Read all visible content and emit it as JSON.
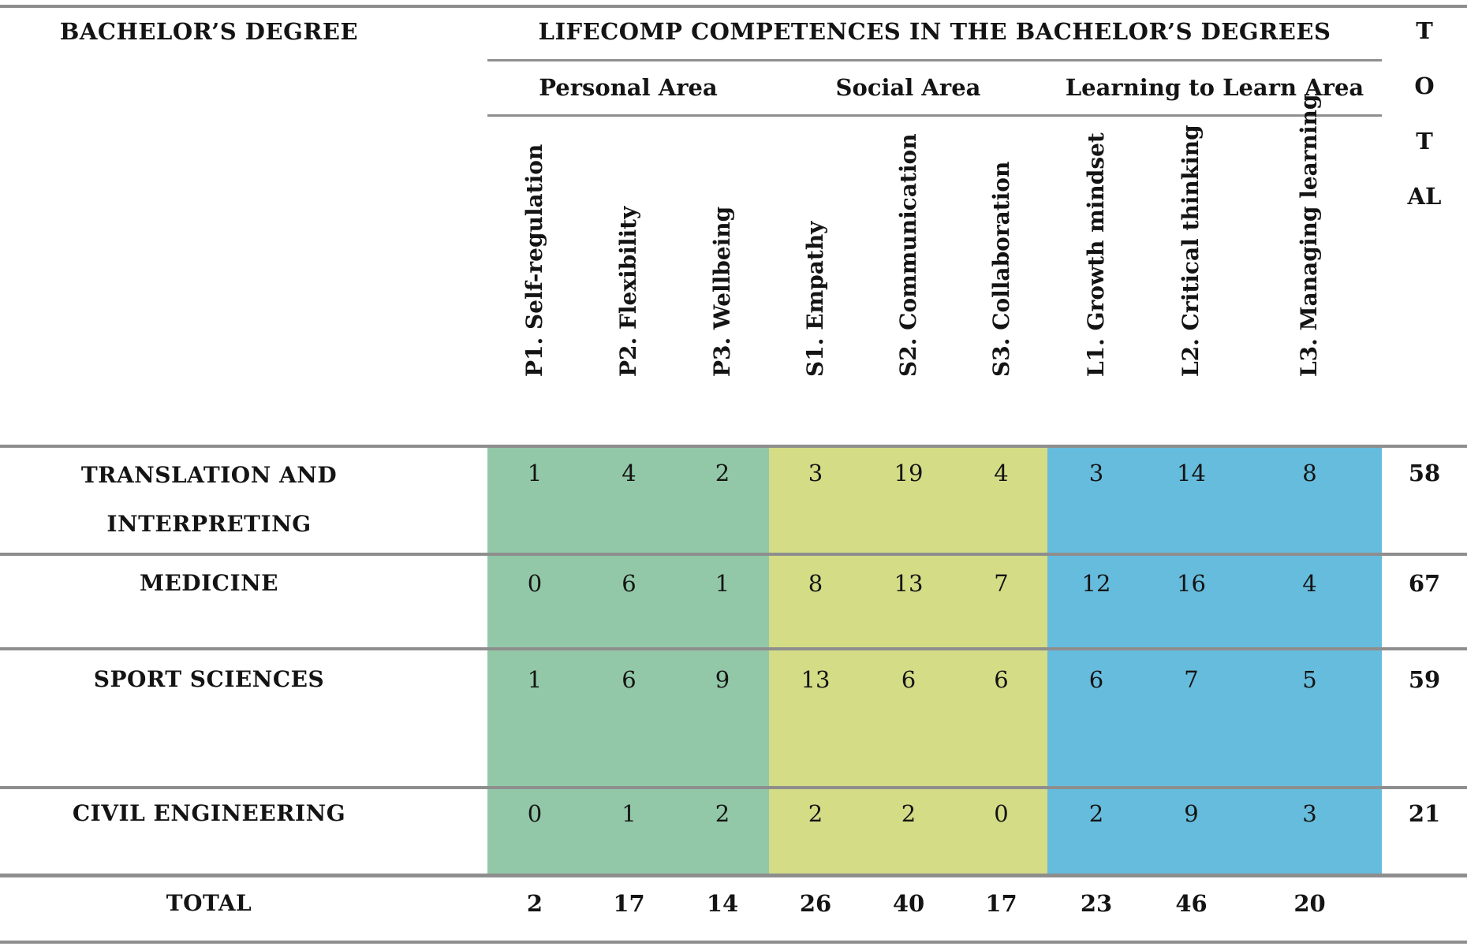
{
  "table": {
    "col_header": "BACHELOR’S DEGREE",
    "main_header": "LIFECOMP COMPETENCES IN THE BACHELOR’S DEGREES",
    "total_header_lines": [
      "T",
      "O",
      "T",
      "AL"
    ],
    "border_color": "#8e8e8e",
    "areas": [
      {
        "label": "Personal Area",
        "color": "#92c8a8",
        "band_css": "background:#92c8a8",
        "columns": [
          "P1. Self-regulation",
          "P2. Flexibility",
          "P3. Wellbeing"
        ]
      },
      {
        "label": "Social Area",
        "color": "#d4dc86",
        "band_css": "background:#d4dc86",
        "columns": [
          "S1. Empathy",
          "S2. Communication",
          "S3. Collaboration"
        ]
      },
      {
        "label": "Learning to Learn Area",
        "color": "#66bcdd",
        "band_css": "background:#66bcdd",
        "columns": [
          "L1. Growth mindset",
          "L2. Critical thinking",
          "L3. Managing learning"
        ]
      }
    ],
    "rows": [
      {
        "label": "TRANSLATION AND INTERPRETING",
        "label_lines": [
          "TRANSLATION AND",
          "INTERPRETING"
        ],
        "values": [
          1,
          4,
          2,
          3,
          19,
          4,
          3,
          14,
          8
        ],
        "total": 58
      },
      {
        "label": "MEDICINE",
        "values": [
          0,
          6,
          1,
          8,
          13,
          7,
          12,
          16,
          4
        ],
        "total": 67
      },
      {
        "label": "SPORT SCIENCES",
        "values": [
          1,
          6,
          9,
          13,
          6,
          6,
          6,
          7,
          5
        ],
        "total": 59
      },
      {
        "label": "CIVIL ENGINEERING",
        "values": [
          0,
          1,
          2,
          2,
          2,
          0,
          2,
          9,
          3
        ],
        "total": 21
      },
      {
        "label": "TOTAL",
        "values": [
          2,
          17,
          14,
          26,
          40,
          17,
          23,
          46,
          20
        ]
      }
    ]
  }
}
